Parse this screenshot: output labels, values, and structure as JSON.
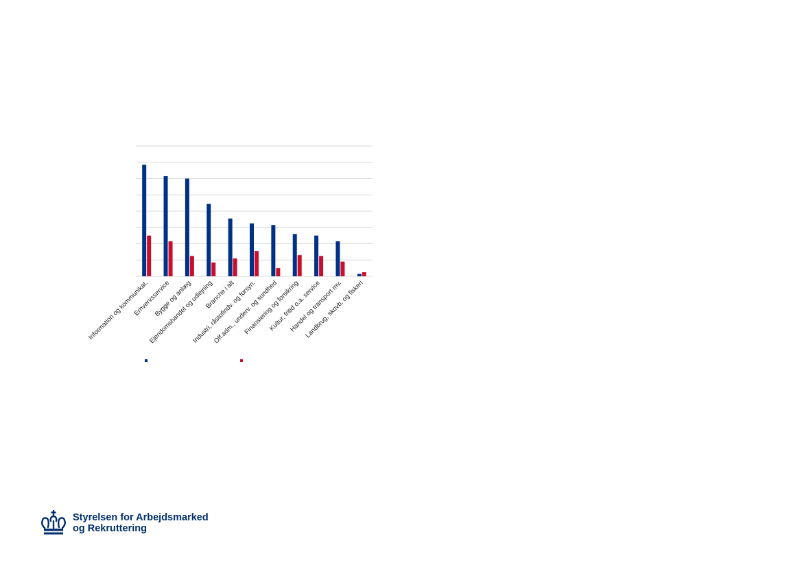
{
  "chart_data": {
    "type": "bar",
    "categories": [
      "Information og kommunikat.",
      "Erhvervsservice",
      "Bygge og anlæg",
      "Ejendomshandel og udlejning",
      "Branche i alt",
      "Industri, råstofindv. og forsyn.",
      "Off.adm., underv. og sundhed",
      "Finansiering og forsikring",
      "Kultur, fritid o.a. service",
      "Handel og transport mv.",
      "Landbrug, skovb. og fiskeri"
    ],
    "series": [
      {
        "color": "#003087",
        "values": [
          6.85,
          6.15,
          6.0,
          4.45,
          3.55,
          3.25,
          3.15,
          2.6,
          2.5,
          2.15,
          0.15
        ]
      },
      {
        "color": "#c8102e",
        "values": [
          2.5,
          2.15,
          1.25,
          0.85,
          1.1,
          1.55,
          0.5,
          1.3,
          1.25,
          0.9,
          0.25
        ]
      }
    ],
    "ylim": [
      0,
      8
    ],
    "grid": true,
    "legend": "bottom"
  },
  "logo": {
    "line1": "Styrelsen for Arbejdsmarked",
    "line2": "og Rekruttering",
    "color": "#002f6c"
  }
}
